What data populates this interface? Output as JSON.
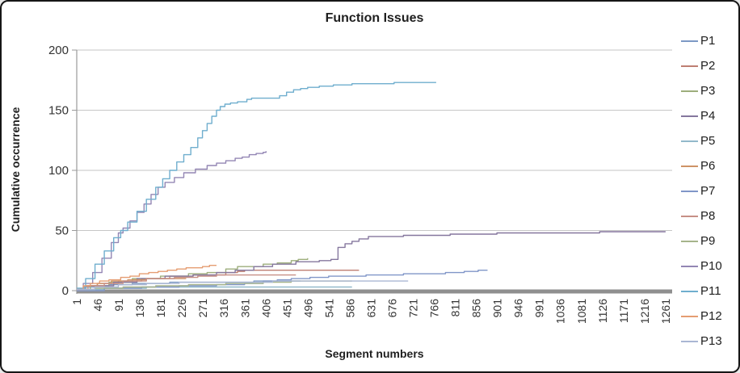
{
  "chart_data": {
    "type": "line",
    "title": "Function Issues",
    "xlabel": "Segment numbers",
    "ylabel": "Cumulative occurrence",
    "ylim": [
      0,
      200
    ],
    "yticks": [
      0,
      50,
      100,
      150,
      200
    ],
    "xtick_labels": [
      1,
      46,
      91,
      136,
      181,
      226,
      271,
      316,
      361,
      406,
      451,
      496,
      541,
      586,
      631,
      676,
      721,
      766,
      811,
      856,
      901,
      946,
      991,
      1036,
      1081,
      1126,
      1171,
      1216,
      1261
    ],
    "grid": "horizontal",
    "legend_position": "right",
    "gridline_color": "#C6C6C6",
    "axis_color": "#9A9A9A",
    "zero_band_color": "#8F8F8F",
    "series": [
      {
        "name": "P1",
        "color": "#7C99C4",
        "points": [
          [
            1,
            1
          ],
          [
            15,
            3
          ],
          [
            40,
            4
          ],
          [
            70,
            5
          ],
          [
            120,
            6
          ],
          [
            200,
            7
          ],
          [
            300,
            7
          ],
          [
            380,
            8
          ],
          [
            480,
            8
          ]
        ]
      },
      {
        "name": "P2",
        "color": "#BE7E72",
        "points": [
          [
            1,
            1
          ],
          [
            20,
            4
          ],
          [
            45,
            6
          ],
          [
            90,
            8
          ],
          [
            140,
            10
          ],
          [
            200,
            12
          ],
          [
            250,
            13
          ],
          [
            290,
            13
          ],
          [
            320,
            15
          ],
          [
            345,
            16
          ],
          [
            360,
            17
          ],
          [
            450,
            17
          ],
          [
            605,
            17
          ]
        ]
      },
      {
        "name": "P3",
        "color": "#9DAE7C",
        "points": [
          [
            1,
            1
          ],
          [
            30,
            4
          ],
          [
            70,
            7
          ],
          [
            120,
            10
          ],
          [
            180,
            12
          ],
          [
            240,
            14
          ],
          [
            280,
            15
          ],
          [
            320,
            18
          ],
          [
            345,
            20
          ],
          [
            400,
            22
          ],
          [
            430,
            23
          ],
          [
            460,
            25
          ],
          [
            475,
            26
          ],
          [
            495,
            27
          ]
        ]
      },
      {
        "name": "P4",
        "color": "#85779E",
        "points": [
          [
            1,
            1
          ],
          [
            40,
            4
          ],
          [
            80,
            7
          ],
          [
            130,
            10
          ],
          [
            190,
            12
          ],
          [
            250,
            13
          ],
          [
            300,
            15
          ],
          [
            340,
            17
          ],
          [
            380,
            20
          ],
          [
            420,
            22
          ],
          [
            470,
            24
          ],
          [
            520,
            25
          ],
          [
            545,
            26
          ],
          [
            560,
            36
          ],
          [
            575,
            39
          ],
          [
            590,
            41
          ],
          [
            605,
            43
          ],
          [
            625,
            45
          ],
          [
            700,
            46
          ],
          [
            780,
            46
          ],
          [
            800,
            47
          ],
          [
            900,
            48
          ],
          [
            1080,
            48
          ],
          [
            1120,
            49
          ],
          [
            1261,
            49
          ]
        ]
      },
      {
        "name": "P5",
        "color": "#92B9CB",
        "points": [
          [
            1,
            1
          ],
          [
            60,
            2
          ],
          [
            150,
            3
          ],
          [
            300,
            3
          ],
          [
            450,
            3
          ],
          [
            590,
            3
          ]
        ]
      },
      {
        "name": "P6",
        "color": "#CE9266",
        "points": [
          [
            1,
            1
          ],
          [
            20,
            4
          ],
          [
            45,
            6
          ],
          [
            75,
            8
          ],
          [
            110,
            9
          ],
          [
            150,
            10
          ],
          [
            200,
            10
          ],
          [
            235,
            10
          ]
        ]
      },
      {
        "name": "P7",
        "color": "#8096C8",
        "points": [
          [
            1,
            0
          ],
          [
            60,
            2
          ],
          [
            140,
            3
          ],
          [
            220,
            4
          ],
          [
            300,
            5
          ],
          [
            360,
            6
          ],
          [
            400,
            8
          ],
          [
            430,
            9
          ],
          [
            460,
            10
          ],
          [
            500,
            11
          ],
          [
            540,
            12
          ],
          [
            580,
            12
          ],
          [
            620,
            13
          ],
          [
            660,
            13
          ],
          [
            700,
            14
          ],
          [
            740,
            14
          ],
          [
            790,
            15
          ],
          [
            830,
            16
          ],
          [
            860,
            17
          ],
          [
            880,
            17
          ]
        ]
      },
      {
        "name": "P8",
        "color": "#C68F86",
        "points": [
          [
            1,
            1
          ],
          [
            25,
            4
          ],
          [
            60,
            6
          ],
          [
            100,
            8
          ],
          [
            150,
            10
          ],
          [
            210,
            11
          ],
          [
            260,
            12
          ],
          [
            300,
            13
          ],
          [
            380,
            13
          ],
          [
            470,
            13
          ]
        ]
      },
      {
        "name": "P9",
        "color": "#A6B48B",
        "points": [
          [
            1,
            1
          ],
          [
            40,
            2
          ],
          [
            100,
            3
          ],
          [
            170,
            4
          ],
          [
            240,
            5
          ],
          [
            320,
            6
          ],
          [
            400,
            7
          ],
          [
            460,
            8
          ],
          [
            540,
            8
          ],
          [
            590,
            8
          ]
        ]
      },
      {
        "name": "P10",
        "color": "#9386B4",
        "points": [
          [
            1,
            1
          ],
          [
            15,
            6
          ],
          [
            35,
            15
          ],
          [
            55,
            27
          ],
          [
            75,
            40
          ],
          [
            90,
            48
          ],
          [
            100,
            52
          ],
          [
            115,
            58
          ],
          [
            130,
            65
          ],
          [
            145,
            72
          ],
          [
            160,
            80
          ],
          [
            175,
            86
          ],
          [
            190,
            90
          ],
          [
            210,
            94
          ],
          [
            230,
            98
          ],
          [
            255,
            101
          ],
          [
            280,
            104
          ],
          [
            300,
            106
          ],
          [
            320,
            108
          ],
          [
            340,
            110
          ],
          [
            355,
            111
          ],
          [
            370,
            113
          ],
          [
            385,
            114
          ],
          [
            400,
            115
          ],
          [
            406,
            116
          ]
        ]
      },
      {
        "name": "P11",
        "color": "#6FAECE",
        "points": [
          [
            1,
            2
          ],
          [
            20,
            10
          ],
          [
            40,
            22
          ],
          [
            60,
            33
          ],
          [
            80,
            44
          ],
          [
            95,
            50
          ],
          [
            110,
            57
          ],
          [
            130,
            66
          ],
          [
            150,
            76
          ],
          [
            170,
            86
          ],
          [
            185,
            93
          ],
          [
            200,
            100
          ],
          [
            215,
            107
          ],
          [
            230,
            113
          ],
          [
            245,
            119
          ],
          [
            260,
            127
          ],
          [
            270,
            133
          ],
          [
            280,
            139
          ],
          [
            290,
            145
          ],
          [
            300,
            150
          ],
          [
            308,
            153
          ],
          [
            318,
            155
          ],
          [
            330,
            156
          ],
          [
            345,
            157
          ],
          [
            355,
            157
          ],
          [
            365,
            159
          ],
          [
            375,
            160
          ],
          [
            420,
            160
          ],
          [
            435,
            162
          ],
          [
            450,
            165
          ],
          [
            465,
            167
          ],
          [
            480,
            168
          ],
          [
            495,
            169
          ],
          [
            520,
            170
          ],
          [
            550,
            171
          ],
          [
            590,
            172
          ],
          [
            640,
            172
          ],
          [
            680,
            173
          ],
          [
            770,
            173
          ]
        ]
      },
      {
        "name": "P12",
        "color": "#E59D72",
        "points": [
          [
            1,
            1
          ],
          [
            15,
            4
          ],
          [
            30,
            6
          ],
          [
            50,
            8
          ],
          [
            70,
            9
          ],
          [
            95,
            11
          ],
          [
            115,
            12
          ],
          [
            135,
            14
          ],
          [
            155,
            15
          ],
          [
            175,
            16
          ],
          [
            195,
            17
          ],
          [
            215,
            18
          ],
          [
            235,
            19
          ],
          [
            255,
            19
          ],
          [
            270,
            20
          ],
          [
            285,
            21
          ],
          [
            300,
            21
          ]
        ]
      },
      {
        "name": "P13",
        "color": "#AAB7D4",
        "points": [
          [
            1,
            1
          ],
          [
            40,
            3
          ],
          [
            90,
            5
          ],
          [
            150,
            6
          ],
          [
            220,
            7
          ],
          [
            320,
            7
          ],
          [
            420,
            8
          ],
          [
            520,
            8
          ],
          [
            600,
            8
          ],
          [
            710,
            8
          ]
        ]
      }
    ]
  }
}
